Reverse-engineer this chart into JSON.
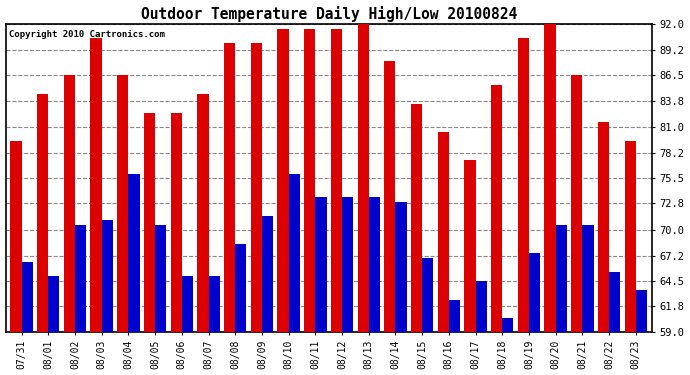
{
  "title": "Outdoor Temperature Daily High/Low 20100824",
  "copyright": "Copyright 2010 Cartronics.com",
  "dates": [
    "07/31",
    "08/01",
    "08/02",
    "08/03",
    "08/04",
    "08/05",
    "08/06",
    "08/07",
    "08/08",
    "08/09",
    "08/10",
    "08/11",
    "08/12",
    "08/13",
    "08/14",
    "08/15",
    "08/16",
    "08/17",
    "08/18",
    "08/19",
    "08/20",
    "08/21",
    "08/22",
    "08/23"
  ],
  "highs": [
    79.5,
    84.5,
    86.5,
    90.5,
    86.5,
    82.5,
    82.5,
    84.5,
    90.0,
    90.0,
    91.5,
    91.5,
    91.5,
    92.5,
    88.0,
    83.5,
    80.5,
    77.5,
    85.5,
    90.5,
    92.5,
    86.5,
    81.5,
    79.5
  ],
  "lows": [
    66.5,
    65.0,
    70.5,
    71.0,
    76.0,
    70.5,
    65.0,
    65.0,
    68.5,
    71.5,
    76.0,
    73.5,
    73.5,
    73.5,
    73.0,
    67.0,
    62.5,
    64.5,
    60.5,
    67.5,
    70.5,
    70.5,
    65.5,
    63.5
  ],
  "high_color": "#dd0000",
  "low_color": "#0000cc",
  "bg_color": "#ffffff",
  "grid_color": "#888888",
  "yticks": [
    59.0,
    61.8,
    64.5,
    67.2,
    70.0,
    72.8,
    75.5,
    78.2,
    81.0,
    83.8,
    86.5,
    89.2,
    92.0
  ],
  "ymin": 59.0,
  "ymax": 92.0,
  "bar_width": 0.42
}
